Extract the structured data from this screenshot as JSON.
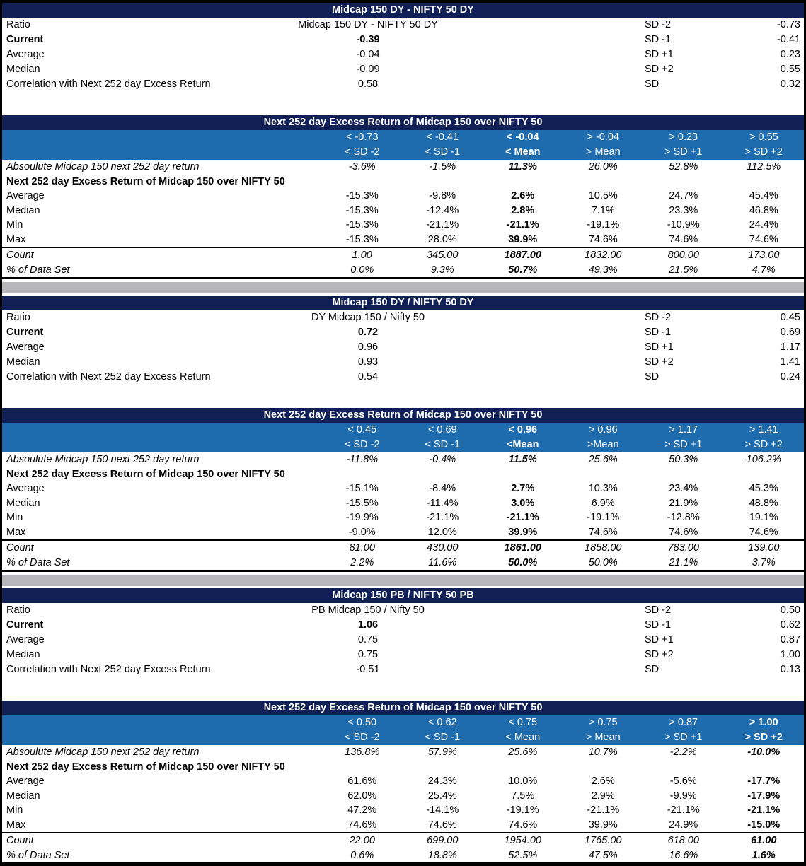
{
  "colors": {
    "navy_header": "#101f55",
    "blue_header": "#1e6bad",
    "separator_gray": "#b7b7bb"
  },
  "chart_data": [
    {
      "type": "table",
      "title": "Midcap 150 DY - NIFTY 50 DY",
      "summary_rows": [
        {
          "label": "Ratio",
          "value": "Midcap 150 DY - NIFTY 50 DY",
          "sd_label": "SD -2",
          "sd_value": "-0.73",
          "bold": false
        },
        {
          "label": "Current",
          "value": "-0.39",
          "sd_label": "SD -1",
          "sd_value": "-0.41",
          "bold": true
        },
        {
          "label": "Average",
          "value": "-0.04",
          "sd_label": "SD +1",
          "sd_value": "0.23",
          "bold": false
        },
        {
          "label": "Median",
          "value": "-0.09",
          "sd_label": "SD +2",
          "sd_value": "0.55",
          "bold": false
        },
        {
          "label": "Correlation with Next 252 day Excess Return",
          "value": "0.58",
          "sd_label": "SD",
          "sd_value": "0.32",
          "bold": false
        }
      ],
      "table_title": "Next 252 day Excess Return of Midcap 150 over NIFTY 50",
      "highlight_col": 2,
      "header_row1": [
        "< -0.73",
        "< -0.41",
        "< -0.04",
        "> -0.04",
        "> 0.23",
        "> 0.55"
      ],
      "header_row2": [
        "< SD -2",
        "< SD -1",
        "< Mean",
        "> Mean",
        "> SD +1",
        "> SD +2"
      ],
      "abs_row": {
        "label": "Absoulute Midcap 150 next 252 day return",
        "values": [
          "-3.6%",
          "-1.5%",
          "11.3%",
          "26.0%",
          "52.8%",
          "112.5%"
        ]
      },
      "group_label": "Next 252 day Excess Return of Midcap 150 over NIFTY 50",
      "stat_rows": [
        {
          "label": "Average",
          "values": [
            "-15.3%",
            "-9.8%",
            "2.6%",
            "10.5%",
            "24.7%",
            "45.4%"
          ]
        },
        {
          "label": "Median",
          "values": [
            "-15.3%",
            "-12.4%",
            "2.8%",
            "7.1%",
            "23.3%",
            "46.8%"
          ]
        },
        {
          "label": "Min",
          "values": [
            "-15.3%",
            "-21.1%",
            "-21.1%",
            "-19.1%",
            "-10.9%",
            "24.4%"
          ]
        },
        {
          "label": "Max",
          "values": [
            "-15.3%",
            "28.0%",
            "39.9%",
            "74.6%",
            "74.6%",
            "74.6%"
          ]
        }
      ],
      "footer_rows": [
        {
          "label": "Count",
          "values": [
            "1.00",
            "345.00",
            "1887.00",
            "1832.00",
            "800.00",
            "173.00"
          ]
        },
        {
          "label": "% of Data Set",
          "values": [
            "0.0%",
            "9.3%",
            "50.7%",
            "49.3%",
            "21.5%",
            "4.7%"
          ]
        }
      ]
    },
    {
      "type": "table",
      "title": "Midcap 150 DY / NIFTY 50 DY",
      "summary_rows": [
        {
          "label": "Ratio",
          "value": "DY Midcap 150 / Nifty 50",
          "sd_label": "SD -2",
          "sd_value": "0.45",
          "bold": false
        },
        {
          "label": "Current",
          "value": "0.72",
          "sd_label": "SD -1",
          "sd_value": "0.69",
          "bold": true
        },
        {
          "label": "Average",
          "value": "0.96",
          "sd_label": "SD +1",
          "sd_value": "1.17",
          "bold": false
        },
        {
          "label": "Median",
          "value": "0.93",
          "sd_label": "SD +2",
          "sd_value": "1.41",
          "bold": false
        },
        {
          "label": "Correlation with Next 252 day Excess Return",
          "value": "0.54",
          "sd_label": "SD",
          "sd_value": "0.24",
          "bold": false
        }
      ],
      "table_title": "Next 252 day Excess Return of Midcap 150 over NIFTY 50",
      "highlight_col": 2,
      "header_row1": [
        "< 0.45",
        "< 0.69",
        "< 0.96",
        "> 0.96",
        "> 1.17",
        "> 1.41"
      ],
      "header_row2": [
        "< SD -2",
        "< SD -1",
        "<Mean",
        ">Mean",
        "> SD +1",
        "> SD +2"
      ],
      "abs_row": {
        "label": "Absoulute Midcap 150 next 252 day return",
        "values": [
          "-11.8%",
          "-0.4%",
          "11.5%",
          "25.6%",
          "50.3%",
          "106.2%"
        ]
      },
      "group_label": "Next 252 day Excess Return of Midcap 150 over NIFTY 50",
      "stat_rows": [
        {
          "label": "Average",
          "values": [
            "-15.1%",
            "-8.4%",
            "2.7%",
            "10.3%",
            "23.4%",
            "45.3%"
          ]
        },
        {
          "label": "Median",
          "values": [
            "-15.5%",
            "-11.4%",
            "3.0%",
            "6.9%",
            "21.9%",
            "48.8%"
          ]
        },
        {
          "label": "Min",
          "values": [
            "-19.9%",
            "-21.1%",
            "-21.1%",
            "-19.1%",
            "-12.8%",
            "19.1%"
          ]
        },
        {
          "label": "Max",
          "values": [
            "-9.0%",
            "12.0%",
            "39.9%",
            "74.6%",
            "74.6%",
            "74.6%"
          ]
        }
      ],
      "footer_rows": [
        {
          "label": "Count",
          "values": [
            "81.00",
            "430.00",
            "1861.00",
            "1858.00",
            "783.00",
            "139.00"
          ]
        },
        {
          "label": "% of Data Set",
          "values": [
            "2.2%",
            "11.6%",
            "50.0%",
            "50.0%",
            "21.1%",
            "3.7%"
          ]
        }
      ]
    },
    {
      "type": "table",
      "title": "Midcap 150 PB / NIFTY 50 PB",
      "summary_rows": [
        {
          "label": "Ratio",
          "value": "PB Midcap 150 / Nifty 50",
          "sd_label": "SD -2",
          "sd_value": "0.50",
          "bold": false
        },
        {
          "label": "Current",
          "value": "1.06",
          "sd_label": "SD -1",
          "sd_value": "0.62",
          "bold": true
        },
        {
          "label": "Average",
          "value": "0.75",
          "sd_label": "SD +1",
          "sd_value": "0.87",
          "bold": false
        },
        {
          "label": "Median",
          "value": "0.75",
          "sd_label": "SD +2",
          "sd_value": "1.00",
          "bold": false
        },
        {
          "label": "Correlation with Next 252 day Excess Return",
          "value": "-0.51",
          "sd_label": "SD",
          "sd_value": "0.13",
          "bold": false
        }
      ],
      "table_title": "Next 252 day Excess Return of Midcap 150 over NIFTY 50",
      "highlight_col": 5,
      "header_row1": [
        "< 0.50",
        "< 0.62",
        "< 0.75",
        "> 0.75",
        "> 0.87",
        "> 1.00"
      ],
      "header_row2": [
        "< SD -2",
        "< SD -1",
        "< Mean",
        "> Mean",
        "> SD +1",
        "> SD +2"
      ],
      "abs_row": {
        "label": "Absoulute Midcap 150 next 252 day return",
        "values": [
          "136.8%",
          "57.9%",
          "25.6%",
          "10.7%",
          "-2.2%",
          "-10.0%"
        ]
      },
      "group_label": "Next 252 day Excess Return of Midcap 150 over NIFTY 50",
      "stat_rows": [
        {
          "label": "Average",
          "values": [
            "61.6%",
            "24.3%",
            "10.0%",
            "2.6%",
            "-5.6%",
            "-17.7%"
          ]
        },
        {
          "label": "Median",
          "values": [
            "62.0%",
            "25.4%",
            "7.5%",
            "2.9%",
            "-9.9%",
            "-17.9%"
          ]
        },
        {
          "label": "Min",
          "values": [
            "47.2%",
            "-14.1%",
            "-19.1%",
            "-21.1%",
            "-21.1%",
            "-21.1%"
          ]
        },
        {
          "label": "Max",
          "values": [
            "74.6%",
            "74.6%",
            "74.6%",
            "39.9%",
            "24.9%",
            "-15.0%"
          ]
        }
      ],
      "footer_rows": [
        {
          "label": "Count",
          "values": [
            "22.00",
            "699.00",
            "1954.00",
            "1765.00",
            "618.00",
            "61.00"
          ]
        },
        {
          "label": "% of Data Set",
          "values": [
            "0.6%",
            "18.8%",
            "52.5%",
            "47.5%",
            "16.6%",
            "1.6%"
          ]
        }
      ]
    }
  ]
}
